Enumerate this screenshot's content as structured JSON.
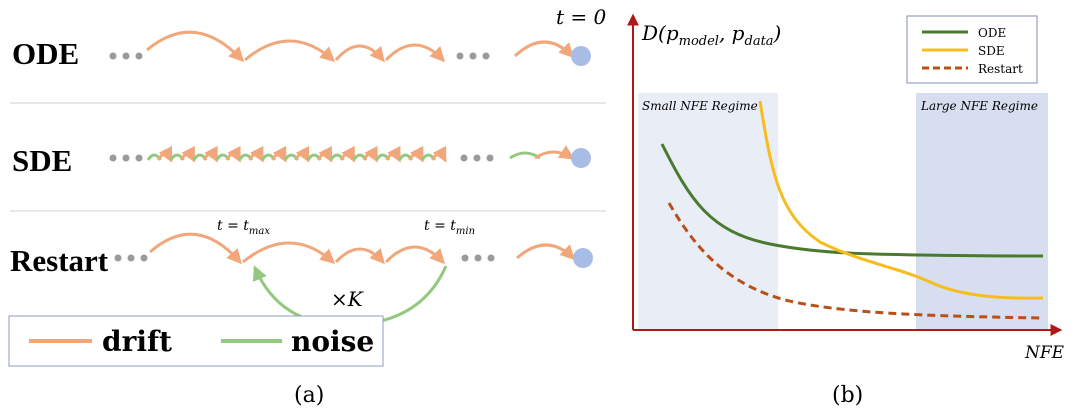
{
  "panel_a": {
    "rows": [
      {
        "label": "ODE"
      },
      {
        "label": "SDE"
      },
      {
        "label": "Restart"
      }
    ],
    "t_zero": "t = 0",
    "t_max": {
      "prefix": "t = ",
      "var": "t",
      "sub": "max"
    },
    "t_min": {
      "prefix": "t = ",
      "var": "t",
      "sub": "min"
    },
    "loop": "×K",
    "legend": [
      {
        "label": "drift",
        "color": "#f2a77a"
      },
      {
        "label": "noise",
        "color": "#93c97f"
      }
    ],
    "caption": "(a)"
  },
  "panel_b": {
    "caption": "(b)",
    "regions": [
      {
        "label": "Small NFE Regime",
        "color": "#e8edf6"
      },
      {
        "label": "Large NFE Regime",
        "color": "#d7deef"
      }
    ],
    "chart_data": {
      "type": "line",
      "ylabel": "D(p_model, p_data)",
      "xlabel": "NFE",
      "grid": false,
      "legend_position": "top-right",
      "series": [
        {
          "name": "ODE",
          "color": "#4a7a2e",
          "dash": "solid"
        },
        {
          "name": "SDE",
          "color": "#f7bd1e",
          "dash": "solid"
        },
        {
          "name": "Restart",
          "color": "#b8501a",
          "dash": "dashed"
        }
      ]
    }
  },
  "colors": {
    "drift": "#f2a77a",
    "noise": "#93c97f",
    "terminal_dot": "#a7bde6",
    "dots": "#9a9a9a",
    "axis": "#b01818"
  }
}
